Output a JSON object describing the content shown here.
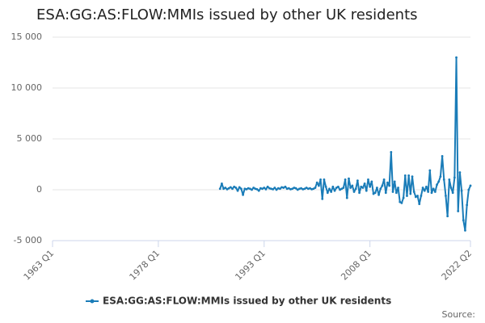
{
  "chart_data": {
    "type": "line",
    "title": "ESA:GG:AS:FLOW:MMIs issued by other UK residents",
    "source_label": "Source:",
    "categories": [
      "1963 Q1",
      null,
      null,
      null,
      null,
      null,
      null,
      null,
      null,
      null,
      null,
      null,
      null,
      null,
      null,
      null,
      null,
      null,
      null,
      null,
      null,
      null,
      null,
      null,
      null,
      null,
      null,
      null,
      null,
      null,
      null,
      null,
      null,
      null,
      null,
      null,
      null,
      null,
      null,
      null,
      null,
      null,
      null,
      null,
      null,
      null,
      null,
      null,
      null,
      null,
      null,
      null,
      null,
      null,
      null,
      null,
      null,
      null,
      null,
      null,
      "1978 Q1",
      null,
      null,
      null,
      null,
      null,
      null,
      null,
      null,
      null,
      null,
      null,
      null,
      null,
      null,
      null,
      null,
      null,
      null,
      null,
      null,
      null,
      null,
      null,
      null,
      null,
      null,
      null,
      null,
      null,
      null,
      null,
      null,
      null,
      null,
      null,
      null,
      null,
      null,
      null,
      null,
      null,
      null,
      null,
      null,
      null,
      null,
      null,
      null,
      null,
      null,
      null,
      null,
      null,
      null,
      null,
      null,
      null,
      null,
      null,
      "1993 Q1",
      null,
      null,
      null,
      null,
      null,
      null,
      null,
      null,
      null,
      null,
      null,
      null,
      null,
      null,
      null,
      null,
      null,
      null,
      null,
      null,
      null,
      null,
      null,
      null,
      null,
      null,
      null,
      null,
      null,
      null,
      null,
      null,
      null,
      null,
      null,
      null,
      null,
      null,
      null,
      null,
      null,
      null,
      null,
      null,
      null,
      null,
      null,
      null,
      null,
      null,
      null,
      null,
      null,
      null,
      null,
      null,
      null,
      null,
      null,
      "2008 Q1",
      null,
      null,
      null,
      null,
      null,
      null,
      null,
      null,
      null,
      null,
      null,
      null,
      null,
      null,
      null,
      null,
      null,
      null,
      null,
      null,
      null,
      null,
      null,
      null,
      null,
      null,
      null,
      null,
      null,
      null,
      null,
      null,
      null,
      null,
      null,
      null,
      null,
      null,
      null,
      null,
      null,
      null,
      null,
      null,
      null,
      null,
      null,
      null,
      null,
      null,
      null,
      null,
      null,
      null,
      null,
      null,
      "2022 Q2"
    ],
    "series": [
      {
        "name": "ESA:GG:AS:FLOW:MMIs issued by other UK residents",
        "color": "#1a7cb8",
        "values": [
          null,
          null,
          null,
          null,
          null,
          null,
          null,
          null,
          null,
          null,
          null,
          null,
          null,
          null,
          null,
          null,
          null,
          null,
          null,
          null,
          null,
          null,
          null,
          null,
          null,
          null,
          null,
          null,
          null,
          null,
          null,
          null,
          null,
          null,
          null,
          null,
          null,
          null,
          null,
          null,
          null,
          null,
          null,
          null,
          null,
          null,
          null,
          null,
          null,
          null,
          null,
          null,
          null,
          null,
          null,
          null,
          null,
          null,
          null,
          null,
          null,
          null,
          null,
          null,
          null,
          null,
          null,
          null,
          null,
          null,
          null,
          null,
          null,
          null,
          null,
          null,
          null,
          null,
          null,
          null,
          null,
          null,
          null,
          null,
          null,
          null,
          null,
          null,
          null,
          null,
          null,
          null,
          null,
          null,
          null,
          100,
          600,
          100,
          200,
          50,
          150,
          250,
          100,
          300,
          200,
          -100,
          250,
          100,
          -500,
          100,
          50,
          150,
          100,
          0,
          200,
          100,
          50,
          -100,
          150,
          100,
          200,
          50,
          300,
          150,
          100,
          50,
          200,
          0,
          150,
          100,
          250,
          200,
          300,
          100,
          150,
          50,
          100,
          200,
          150,
          0,
          100,
          150,
          50,
          100,
          200,
          100,
          150,
          50,
          100,
          200,
          700,
          400,
          1000,
          -900,
          1000,
          300,
          -300,
          100,
          -200,
          300,
          -100,
          200,
          300,
          0,
          100,
          200,
          1000,
          -800,
          1100,
          200,
          400,
          -200,
          100,
          900,
          -300,
          300,
          200,
          600,
          -100,
          1000,
          300,
          800,
          -400,
          -300,
          200,
          -500,
          100,
          400,
          1000,
          -300,
          700,
          400,
          3700,
          -200,
          800,
          -300,
          200,
          -1200,
          -1300,
          -800,
          1400,
          -600,
          1400,
          -400,
          1300,
          -200,
          -700,
          -600,
          -1400,
          -600,
          200,
          -100,
          300,
          -200,
          1900,
          -300,
          100,
          -200,
          500,
          800,
          1300,
          3300,
          1000,
          -600,
          -2600,
          1000,
          200,
          -300,
          1200,
          13000,
          -2100,
          1700,
          -100,
          -3000,
          -4000,
          -1500,
          0,
          400
        ]
      }
    ],
    "ylim": [
      -5000,
      15000
    ],
    "yticks": [
      {
        "value": -5000,
        "label": "-5 000"
      },
      0,
      {
        "value": 5000,
        "label": "5 000"
      },
      {
        "value": 10000,
        "label": "10 000"
      },
      {
        "value": 15000,
        "label": "15 000"
      }
    ],
    "grid": true,
    "legend": "bottom"
  }
}
